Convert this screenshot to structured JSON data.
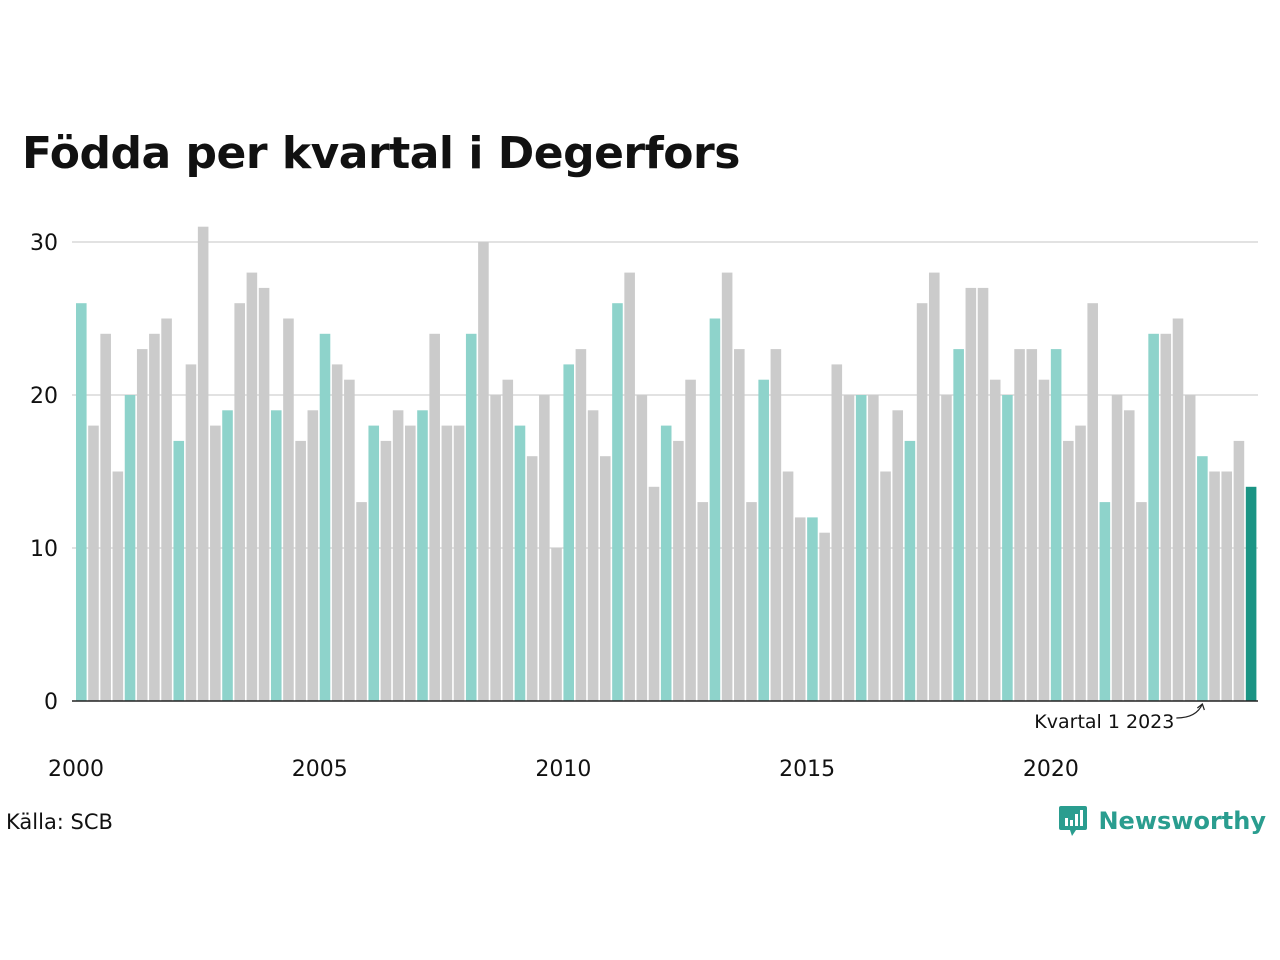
{
  "title": "Födda per kvartal i Degerfors",
  "source": "Källa: SCB",
  "brand": "Newsworthy",
  "annotation": "Kvartal 1 2023",
  "colors": {
    "q1": "#8ed3cb",
    "other": "#cbcbcb",
    "latest": "#1a9484",
    "grid": "#e2e2e2",
    "axis": "#222222",
    "brand": "#2a9d8f"
  },
  "chart_data": {
    "type": "bar",
    "title": "Födda per kvartal i Degerfors",
    "xlabel": "",
    "ylabel": "",
    "ylim": [
      0,
      30
    ],
    "yticks": [
      0,
      10,
      20,
      30
    ],
    "xtick_labels": [
      "2000",
      "2005",
      "2010",
      "2015",
      "2020"
    ],
    "grid": true,
    "start_year": 2000,
    "values": [
      26,
      18,
      24,
      15,
      20,
      23,
      24,
      25,
      17,
      22,
      31,
      18,
      19,
      26,
      28,
      27,
      19,
      25,
      17,
      19,
      24,
      22,
      21,
      13,
      18,
      17,
      19,
      18,
      19,
      24,
      18,
      18,
      24,
      30,
      20,
      21,
      18,
      16,
      20,
      10,
      22,
      23,
      19,
      16,
      26,
      28,
      20,
      14,
      18,
      17,
      21,
      13,
      25,
      28,
      23,
      13,
      21,
      23,
      15,
      12,
      12,
      11,
      22,
      20,
      20,
      20,
      15,
      19,
      17,
      26,
      28,
      20,
      23,
      27,
      27,
      21,
      20,
      23,
      23,
      21,
      23,
      17,
      18,
      26,
      13,
      20,
      19,
      13,
      24,
      24,
      25,
      20,
      16,
      15,
      15,
      17,
      14
    ]
  }
}
